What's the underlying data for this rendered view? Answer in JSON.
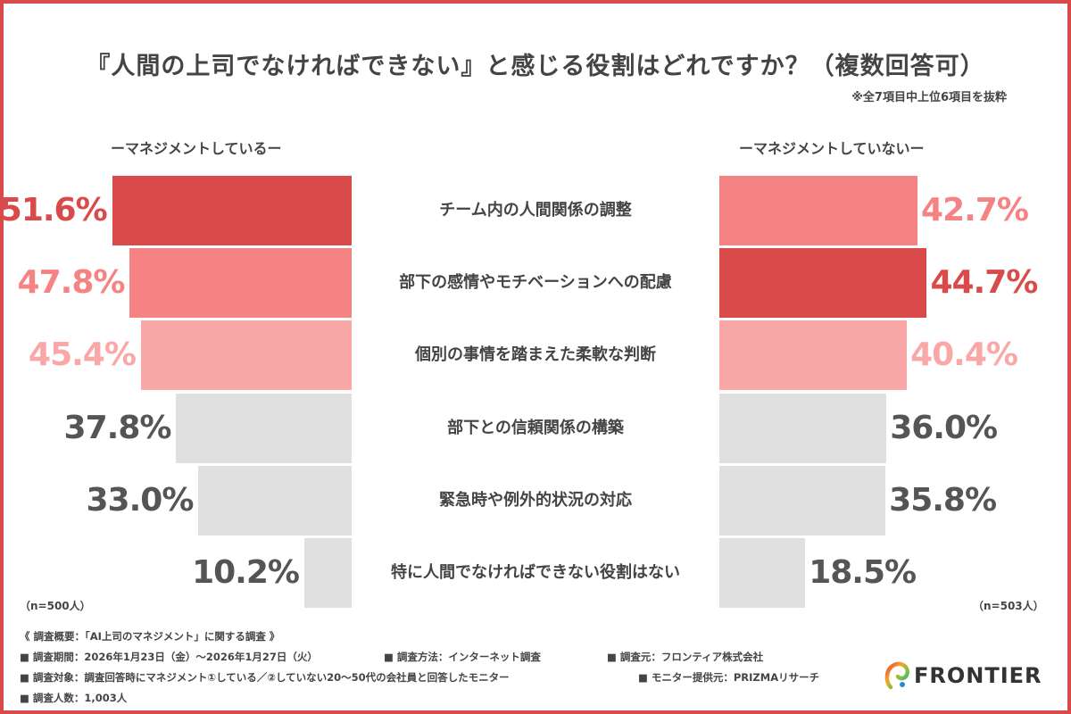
{
  "title": "『人間の上司でなければできない』と感じる役割はどれですか？（複数回答可）",
  "note": "※全7項目中上位6項目を抜粋",
  "chart_data": {
    "type": "bar",
    "orientation": "horizontal-butterfly",
    "categories": [
      "チーム内の人間関係の調整",
      "部下の感情やモチベーションへの配慮",
      "個別の事情を踏まえた柔軟な判断",
      "部下との信頼関係の構築",
      "緊急時や例外的状況の対応",
      "特に人間でなければできない役割はない"
    ],
    "series": [
      {
        "name": "ーマネジメントしているー",
        "values": [
          51.6,
          47.8,
          45.4,
          37.8,
          33.0,
          10.2
        ],
        "labels": [
          "51.6%",
          "47.8%",
          "45.4%",
          "37.8%",
          "33.0%",
          "10.2%"
        ],
        "colors": [
          "#d94b4b",
          "#f68383",
          "#f9a7a7",
          "#e0e0e0",
          "#e0e0e0",
          "#e0e0e0"
        ],
        "label_colors": [
          "#d94b4b",
          "#f68383",
          "#f9a7a7",
          "#555555",
          "#555555",
          "#555555"
        ],
        "n": "（n=500人）"
      },
      {
        "name": "ーマネジメントしていないー",
        "values": [
          42.7,
          44.7,
          40.4,
          36.0,
          35.8,
          18.5
        ],
        "labels": [
          "42.7%",
          "44.7%",
          "40.4%",
          "36.0%",
          "35.8%",
          "18.5%"
        ],
        "colors": [
          "#f68383",
          "#d94b4b",
          "#f9a7a7",
          "#e0e0e0",
          "#e0e0e0",
          "#e0e0e0"
        ],
        "label_colors": [
          "#f68383",
          "#d94b4b",
          "#f9a7a7",
          "#555555",
          "#555555",
          "#555555"
        ],
        "n": "（n=503人）"
      }
    ]
  },
  "footer": {
    "heading": "《 調査概要：「AI上司のマネジメント」に関する調査 》",
    "period": "■ 調査期間：2026年1月23日（金）〜2026年1月27日（火）",
    "method": "■ 調査方法：インターネット調査",
    "source": "■ 調査元：フロンティア株式会社",
    "target": "■ 調査対象：調査回答時にマネジメント①している／②していない20〜50代の会社員と回答したモニター",
    "provider": "■ モニター提供元：PRIZMAリサーチ",
    "count": "■ 調査人数：1,003人"
  },
  "logo": {
    "text": "FRONTIER"
  },
  "colors": {
    "accent": "#d94b4b",
    "border": "#d94b4b"
  }
}
